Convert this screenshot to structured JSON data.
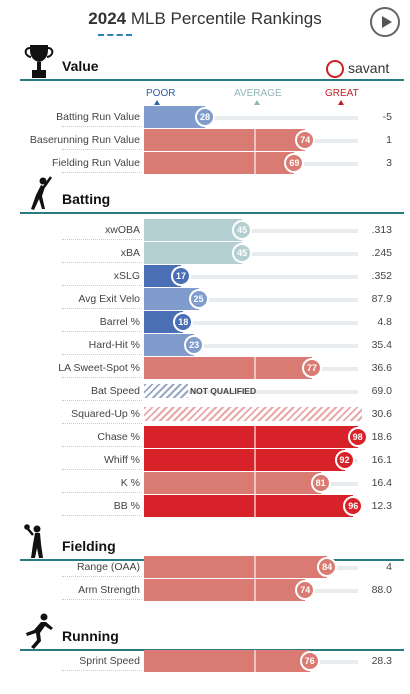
{
  "header": {
    "title_year": "2024",
    "title_rest": " MLB Percentile Rankings",
    "play_button": "play-icon"
  },
  "scale": {
    "poor": "POOR",
    "average": "AVERAGE",
    "great": "GREAT"
  },
  "brand": {
    "text": "savant",
    "icon": "savant-logo-icon"
  },
  "colors": {
    "poor_deep": "#4a6fb5",
    "poor": "#7f9ccc",
    "average": "#b4cfd1",
    "good": "#d97b73",
    "great": "#d8222a",
    "track": "#e8ecee",
    "rule": "#2a7a82"
  },
  "sections": [
    {
      "label": "Value",
      "icon": "trophy-icon",
      "rows": [
        {
          "name": "Batting Run Value",
          "pct": 28,
          "value": "-5",
          "tier": "poor"
        },
        {
          "name": "Baserunning Run Value",
          "pct": 74,
          "value": "1",
          "tier": "good"
        },
        {
          "name": "Fielding Run Value",
          "pct": 69,
          "value": "3",
          "tier": "good"
        }
      ]
    },
    {
      "label": "Batting",
      "icon": "batter-icon",
      "rows": [
        {
          "name": "xwOBA",
          "pct": 45,
          "value": ".313",
          "tier": "average"
        },
        {
          "name": "xBA",
          "pct": 45,
          "value": ".245",
          "tier": "average"
        },
        {
          "name": "xSLG",
          "pct": 17,
          "value": ".352",
          "tier": "poor_deep"
        },
        {
          "name": "Avg Exit Velo",
          "pct": 25,
          "value": "87.9",
          "tier": "poor"
        },
        {
          "name": "Barrel %",
          "pct": 18,
          "value": "4.8",
          "tier": "poor_deep"
        },
        {
          "name": "Hard-Hit %",
          "pct": 23,
          "value": "35.4",
          "tier": "poor"
        },
        {
          "name": "LA Sweet-Spot %",
          "pct": 77,
          "value": "36.6",
          "tier": "good"
        },
        {
          "name": "Bat Speed",
          "pct": null,
          "value": "69.0",
          "tier": "nq",
          "note": "NOT QUALIFIED"
        },
        {
          "name": "Squared-Up %",
          "pct": null,
          "value": "30.6",
          "tier": "hatch"
        },
        {
          "name": "Chase %",
          "pct": 98,
          "value": "18.6",
          "tier": "great"
        },
        {
          "name": "Whiff %",
          "pct": 92,
          "value": "16.1",
          "tier": "great"
        },
        {
          "name": "K %",
          "pct": 81,
          "value": "16.4",
          "tier": "good"
        },
        {
          "name": "BB %",
          "pct": 96,
          "value": "12.3",
          "tier": "great"
        }
      ]
    },
    {
      "label": "Fielding",
      "icon": "fielder-icon",
      "rows": [
        {
          "name": "Range (OAA)",
          "pct": 84,
          "value": "4",
          "tier": "good"
        },
        {
          "name": "Arm Strength",
          "pct": 74,
          "value": "88.0",
          "tier": "good"
        }
      ]
    },
    {
      "label": "Running",
      "icon": "runner-icon",
      "rows": [
        {
          "name": "Sprint Speed",
          "pct": 76,
          "value": "28.3",
          "tier": "good"
        }
      ]
    }
  ]
}
